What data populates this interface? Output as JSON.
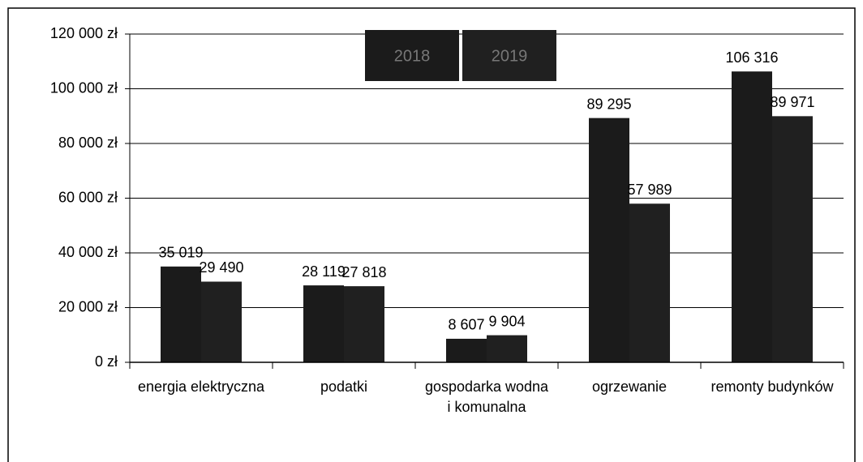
{
  "chart_data": {
    "type": "bar",
    "categories": [
      "energia elektryczna",
      "podatki",
      "gospodarka wodna i komunalna",
      "ogrzewanie",
      "remonty budynków"
    ],
    "series": [
      {
        "name": "2018",
        "color": "#1b1b1b",
        "values": [
          35019,
          28119,
          8607,
          89295,
          106316
        ],
        "value_labels": [
          "35 019",
          "28 119",
          "8 607",
          "89 295",
          "106 316"
        ]
      },
      {
        "name": "2019",
        "color": "#202020",
        "values": [
          29490,
          27818,
          9904,
          57989,
          89971
        ],
        "value_labels": [
          "29 490",
          "27 818",
          "9 904",
          "57 989",
          "89 971"
        ]
      }
    ],
    "ylim": [
      0,
      120000
    ],
    "yticks": [
      {
        "value": 0,
        "label": "0 zł"
      },
      {
        "value": 20000,
        "label": "20 000 zł"
      },
      {
        "value": 40000,
        "label": "40 000 zł"
      },
      {
        "value": 60000,
        "label": "60 000 zł"
      },
      {
        "value": 80000,
        "label": "80 000 zł"
      },
      {
        "value": 100000,
        "label": "100 000 zł"
      },
      {
        "value": 120000,
        "label": "120 000 zł"
      }
    ],
    "grid": true,
    "legend": "top"
  }
}
